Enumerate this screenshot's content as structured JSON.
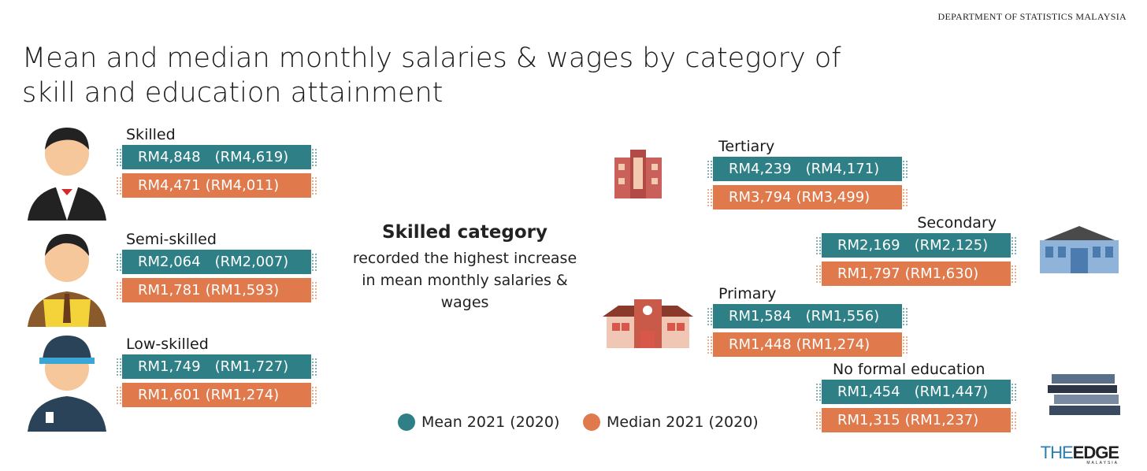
{
  "source": "DEPARTMENT OF STATISTICS MALAYSIA",
  "title": "Mean and median monthly salaries & wages by category of skill and education attainment",
  "skill": [
    {
      "label": "Skilled",
      "mean": "RM4,848",
      "mean_prev": "(RM4,619)",
      "median": "RM4,471",
      "median_prev": "(RM4,011)"
    },
    {
      "label": "Semi-skilled",
      "mean": "RM2,064",
      "mean_prev": "(RM2,007)",
      "median": "RM1,781",
      "median_prev": "(RM1,593)"
    },
    {
      "label": "Low-skilled",
      "mean": "RM1,749",
      "mean_prev": "(RM1,727)",
      "median": "RM1,601",
      "median_prev": "(RM1,274)"
    }
  ],
  "education": [
    {
      "label": "Tertiary",
      "mean": "RM4,239",
      "mean_prev": "(RM4,171)",
      "median": "RM3,794",
      "median_prev": "(RM3,499)"
    },
    {
      "label": "Secondary",
      "mean": "RM2,169",
      "mean_prev": "(RM2,125)",
      "median": "RM1,797",
      "median_prev": "(RM1,630)"
    },
    {
      "label": "Primary",
      "mean": "RM1,584",
      "mean_prev": "(RM1,556)",
      "median": "RM1,448",
      "median_prev": "(RM1,274)"
    },
    {
      "label": "No formal education",
      "mean": "RM1,454",
      "mean_prev": "(RM1,447)",
      "median": "RM1,315",
      "median_prev": "(RM1,237)"
    }
  ],
  "note": {
    "heading": "Skilled category",
    "body": "recorded the highest increase in mean monthly salaries & wages"
  },
  "legend": [
    "Mean 2021 (2020)",
    "Median 2021 (2020)"
  ],
  "logo": {
    "the": "THE",
    "edge": "EDGE",
    "sub": "MALAYSIA"
  }
}
